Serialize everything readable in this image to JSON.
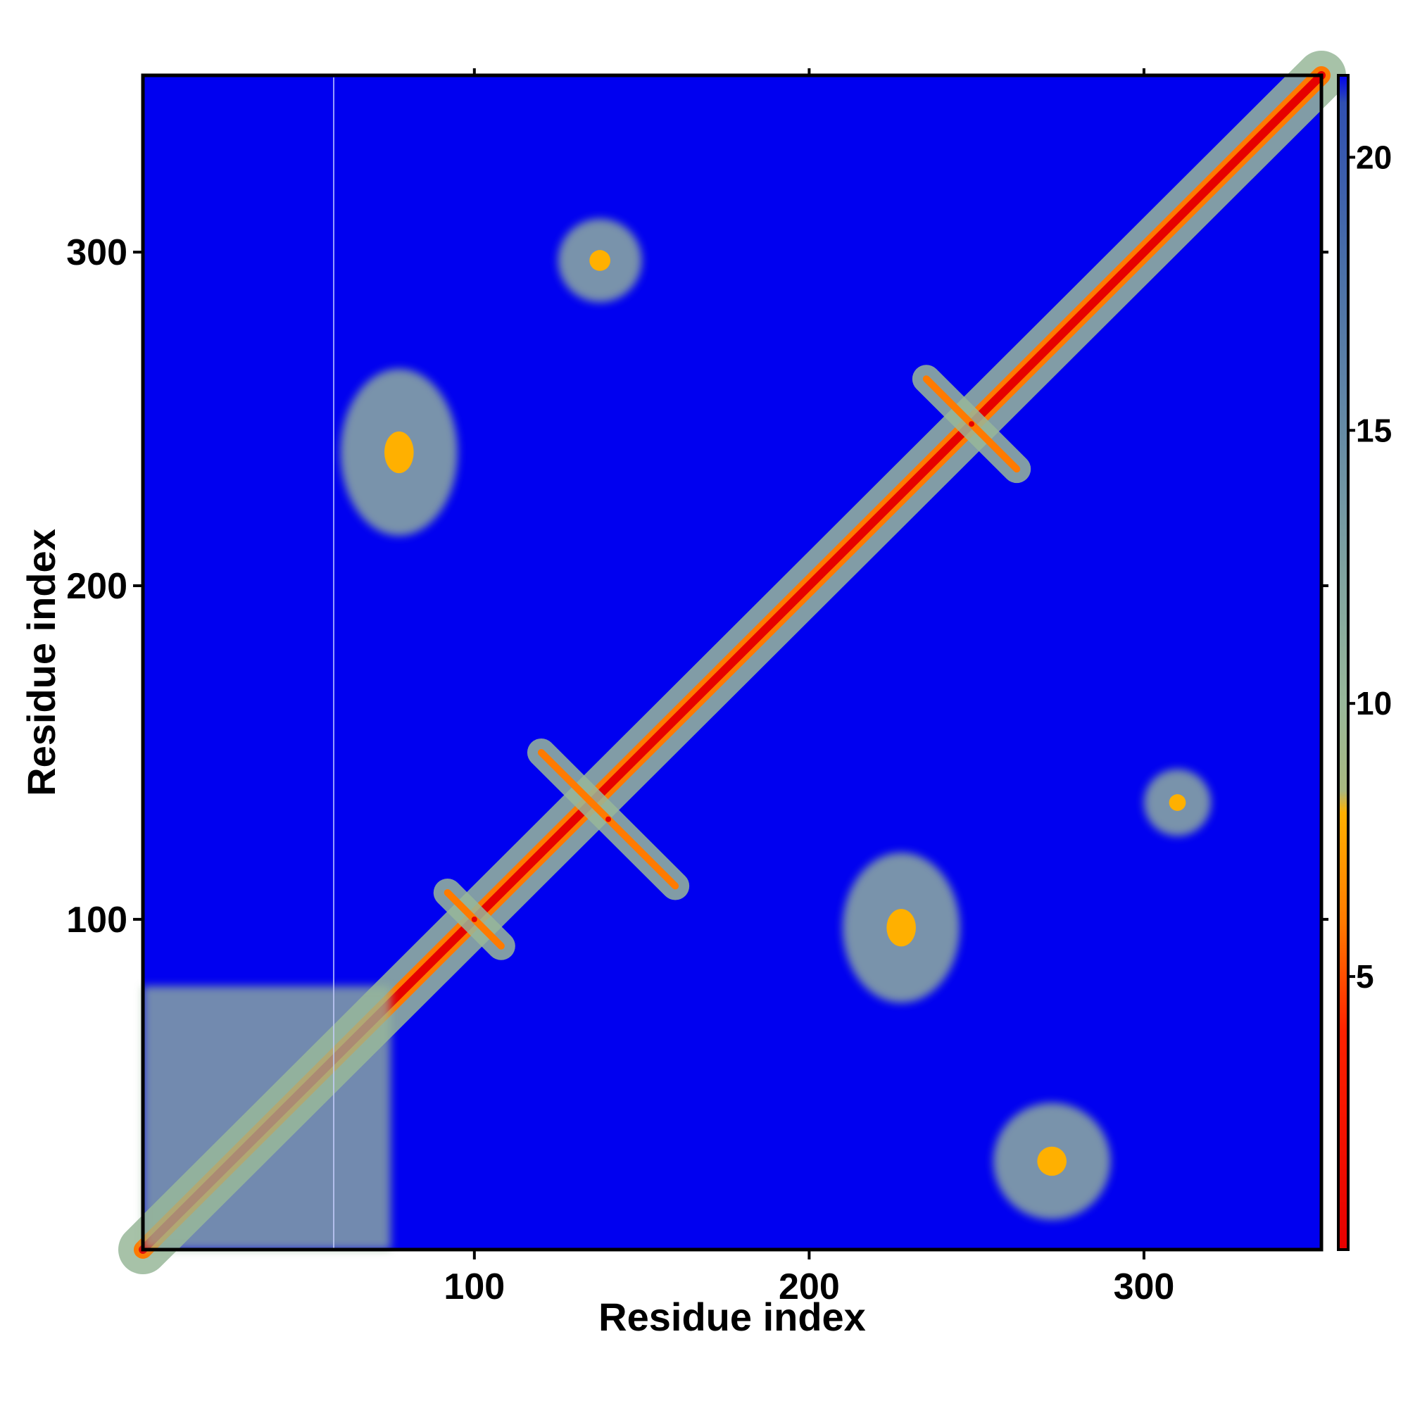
{
  "chart_data": {
    "type": "heatmap",
    "title": "",
    "xlabel": "Residue index",
    "ylabel": "Residue index",
    "xlim": [
      1,
      353
    ],
    "ylim": [
      1,
      353
    ],
    "x_ticks": [
      100,
      200,
      300
    ],
    "y_ticks": [
      100,
      200,
      300
    ],
    "colorbar": {
      "ticks": [
        5,
        10,
        15,
        20
      ],
      "range": [
        0,
        21.5
      ],
      "stops": [
        {
          "value": 0,
          "color": "#e60000"
        },
        {
          "value": 4.0,
          "color": "#ff2200"
        },
        {
          "value": 6.0,
          "color": "#ff7a00"
        },
        {
          "value": 8.0,
          "color": "#ffb000"
        },
        {
          "value": 8.4,
          "color": "#a8b880"
        },
        {
          "value": 10.0,
          "color": "#98b89a"
        },
        {
          "value": 14.0,
          "color": "#6f94a4"
        },
        {
          "value": 18.0,
          "color": "#4a6fa8"
        },
        {
          "value": 21.0,
          "color": "#3050b0"
        },
        {
          "value": 21.5,
          "color": "#0000f0"
        }
      ]
    },
    "background_color": "#0000f0",
    "contact_regions": [
      {
        "name": "main-diagonal",
        "kind": "diagonal",
        "from": 1,
        "to": 353
      },
      {
        "name": "n-term-block",
        "kind": "block",
        "x": [
          1,
          75
        ],
        "y": [
          1,
          80
        ]
      },
      {
        "name": "strand-pair-1",
        "kind": "anti",
        "x": [
          120,
          160
        ],
        "y": [
          110,
          150
        ]
      },
      {
        "name": "strand-pair-2",
        "kind": "anti",
        "x": [
          235,
          262
        ],
        "y": [
          235,
          262
        ]
      },
      {
        "name": "strand-pair-3",
        "kind": "anti",
        "x": [
          92,
          108
        ],
        "y": [
          92,
          108
        ]
      },
      {
        "name": "cluster-a",
        "kind": "blob",
        "x": [
          125,
          150
        ],
        "y": [
          285,
          310
        ]
      },
      {
        "name": "cluster-b",
        "kind": "blob",
        "x": [
          210,
          245
        ],
        "y": [
          75,
          120
        ]
      },
      {
        "name": "cluster-c",
        "kind": "blob",
        "x": [
          255,
          290
        ],
        "y": [
          10,
          45
        ]
      },
      {
        "name": "cluster-d",
        "kind": "blob",
        "x": [
          300,
          320
        ],
        "y": [
          125,
          145
        ]
      },
      {
        "name": "cluster-e",
        "kind": "blob",
        "x": [
          60,
          95
        ],
        "y": [
          215,
          265
        ]
      }
    ]
  }
}
